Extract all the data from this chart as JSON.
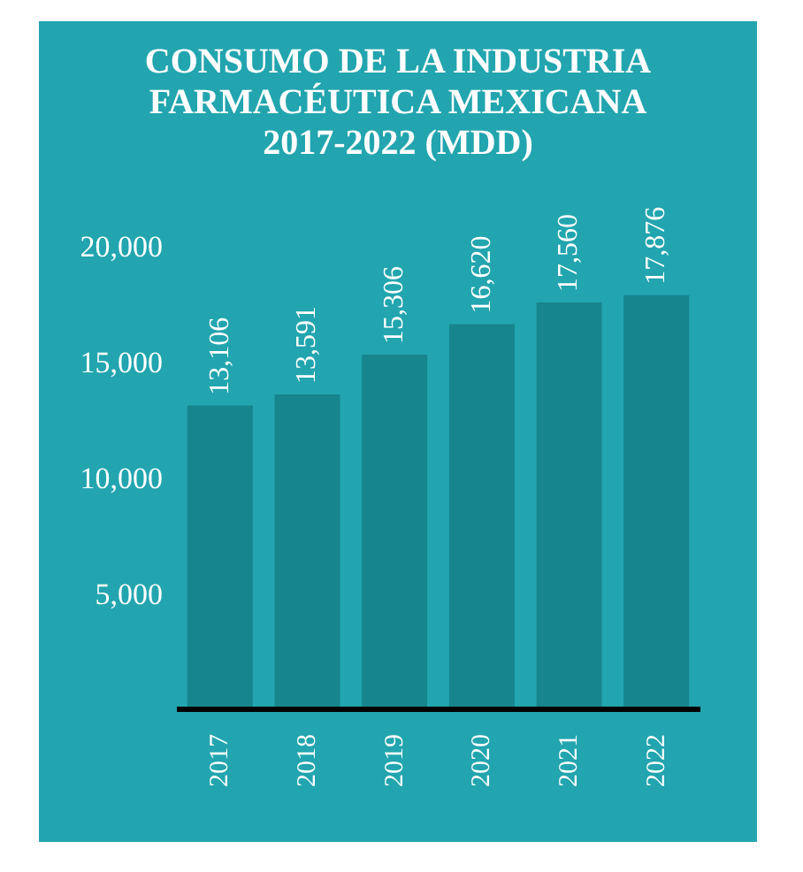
{
  "chart_data": {
    "type": "bar",
    "title": "CONSUMO DE LA INDUSTRIA FARMACÉUTICA MEXICANA 2017-2022 (MDD)",
    "categories": [
      "2017",
      "2018",
      "2019",
      "2020",
      "2021",
      "2022"
    ],
    "values": [
      13106,
      13591,
      15306,
      16620,
      17560,
      17876
    ],
    "value_labels": [
      "13,106",
      "13,591",
      "15,306",
      "16,620",
      "17,560",
      "17,876"
    ],
    "color": "#17858e",
    "ylim": [
      0,
      20000
    ],
    "yticks": [
      {
        "value": 5000,
        "label": "5,000"
      },
      {
        "value": 10000,
        "label": "10,000"
      },
      {
        "value": 15000,
        "label": "15,000"
      },
      {
        "value": 20000,
        "label": "20,000"
      }
    ],
    "grid": false
  }
}
